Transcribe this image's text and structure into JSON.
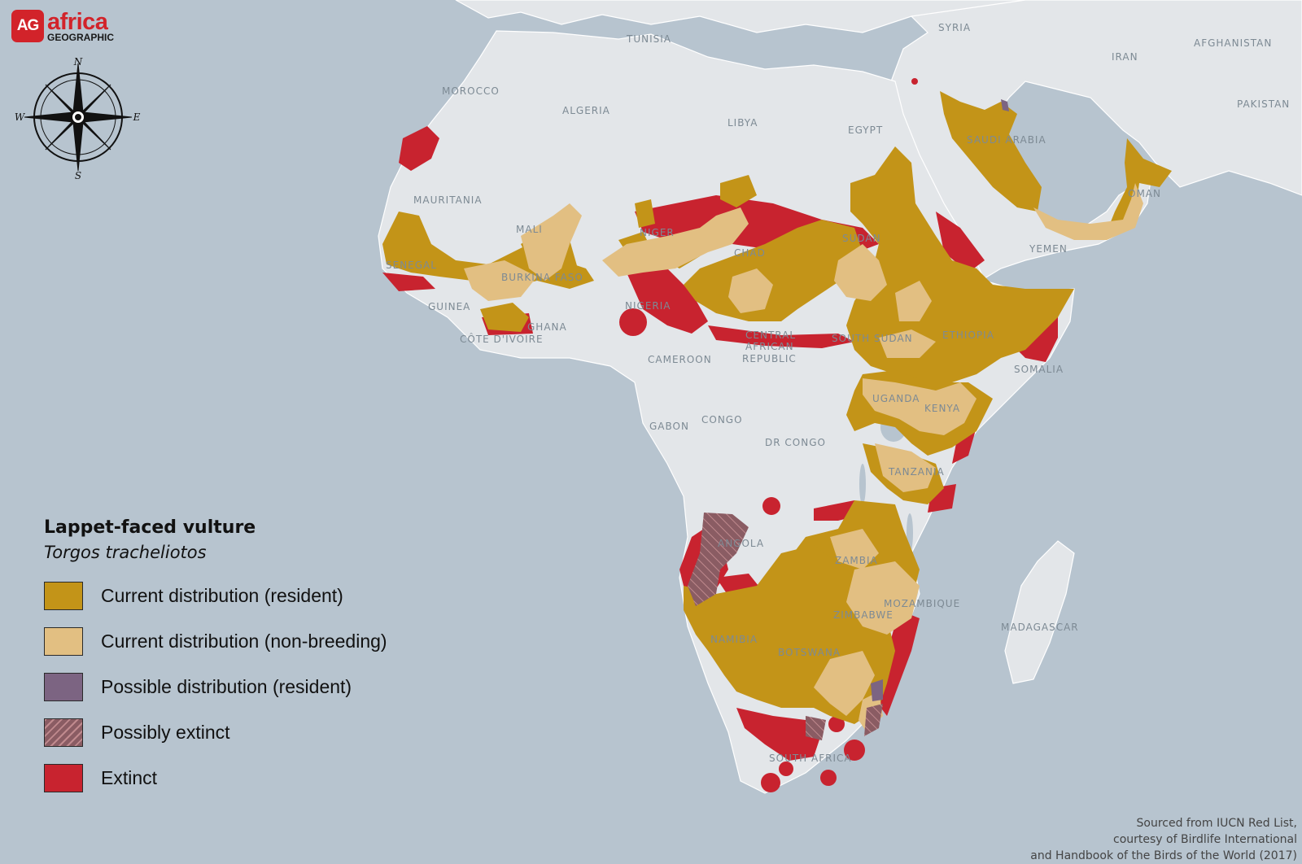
{
  "brand": {
    "badge": "AG",
    "name": "africa",
    "sub": "GEOGRAPHIC"
  },
  "compass": {
    "n": "N",
    "s": "S",
    "e": "E",
    "w": "W"
  },
  "colors": {
    "ocean": "#b7c4cf",
    "land": "#e3e6e9",
    "resident": "#c39418",
    "non_breeding": "#e2bf82",
    "possible_resident": "#7c6482",
    "possibly_extinct": "#8a5c63",
    "extinct": "#c8232f"
  },
  "countries": [
    "TUNISIA",
    "SYRIA",
    "AFGHANISTAN",
    "IRAN",
    "MOROCCO",
    "ALGERIA",
    "LIBYA",
    "EGYPT",
    "PAKISTAN",
    "SAUDI ARABIA",
    "MAURITANIA",
    "MALI",
    "NIGER",
    "SUDAN",
    "CHAD",
    "OMAN",
    "SENEGAL",
    "YEMEN",
    "BURKINA FASO",
    "GUINEA",
    "NIGERIA",
    "GHANA",
    "CÔTE D'IVOIRE",
    "CENTRAL",
    "AFRICAN",
    "REPUBLIC",
    "SOUTH SUDAN",
    "ETHIOPIA",
    "CAMEROON",
    "SOMALIA",
    "UGANDA",
    "KENYA",
    "GABON",
    "CONGO",
    "DR CONGO",
    "TANZANIA",
    "ANGOLA",
    "ZAMBIA",
    "MOZAMBIQUE",
    "ZIMBABWE",
    "MADAGASCAR",
    "NAMIBIA",
    "BOTSWANA",
    "SOUTH AFRICA"
  ],
  "legend": {
    "title": "Lappet-faced vulture",
    "subtitle": "Torgos tracheliotos",
    "items": [
      {
        "label": "Current distribution (resident)",
        "key": "resident"
      },
      {
        "label": "Current distribution (non-breeding)",
        "key": "non_breeding"
      },
      {
        "label": "Possible distribution (resident)",
        "key": "possible_resident"
      },
      {
        "label": "Possibly extinct",
        "key": "possibly_extinct"
      },
      {
        "label": "Extinct",
        "key": "extinct"
      }
    ]
  },
  "source": {
    "line1": "Sourced from IUCN Red List,",
    "line2": "courtesy of Birdlife International",
    "line3": "and Handbook of the Birds of the World (2017)"
  }
}
